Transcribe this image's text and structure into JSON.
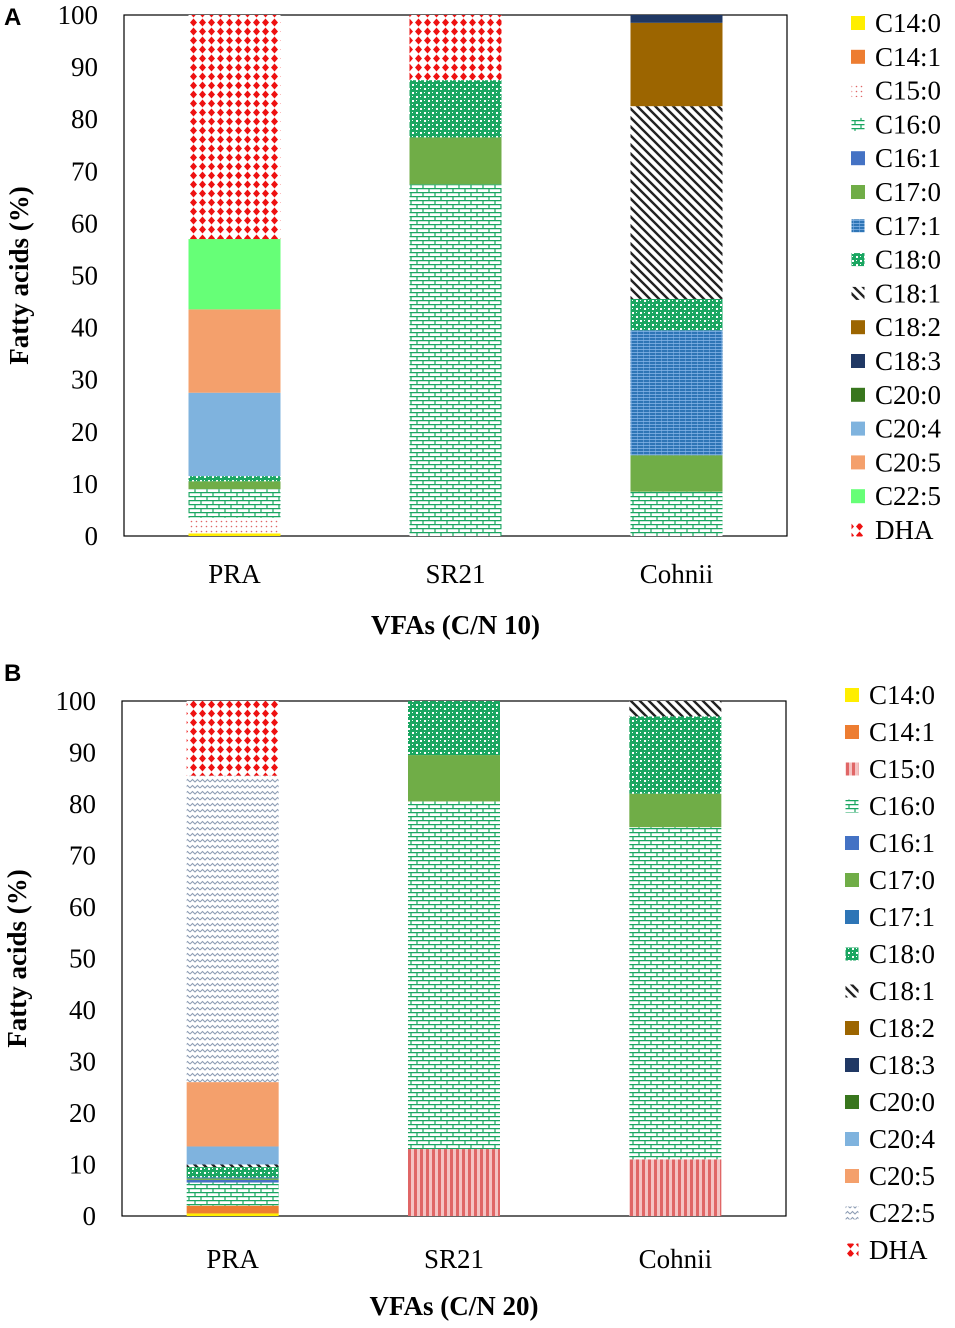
{
  "chart_data": [
    {
      "type": "bar",
      "stacked": true,
      "panel_label": "A",
      "title": "",
      "xlabel": "VFAs (C/N 10)",
      "ylabel": "Fatty acids (%)",
      "ylim": [
        0,
        100
      ],
      "yticks": [
        0,
        10,
        20,
        30,
        40,
        50,
        60,
        70,
        80,
        90,
        100
      ],
      "categories": [
        "PRA",
        "SR21",
        "Cohnii"
      ],
      "legend_position": "right",
      "series": [
        {
          "name": "C14:0",
          "color": "#ffee00",
          "pattern": "solid",
          "values": [
            0.5,
            0,
            0
          ]
        },
        {
          "name": "C14:1",
          "color": "#ed7d31",
          "pattern": "solid",
          "values": [
            0,
            0,
            0
          ]
        },
        {
          "name": "C15:0",
          "color": "#e06666",
          "pattern": "dots",
          "values": [
            3,
            0,
            0
          ]
        },
        {
          "name": "C16:0",
          "color": "#1aa661",
          "pattern": "brick",
          "values": [
            5.5,
            67.5,
            8.5
          ]
        },
        {
          "name": "C16:1",
          "color": "#4472c4",
          "pattern": "solid",
          "values": [
            0,
            0,
            0
          ]
        },
        {
          "name": "C17:0",
          "color": "#70ad47",
          "pattern": "solid",
          "values": [
            1.5,
            9,
            7
          ]
        },
        {
          "name": "C17:1",
          "color": "#2e75b6",
          "pattern": "weave",
          "values": [
            0,
            0,
            24
          ]
        },
        {
          "name": "C18:0",
          "color": "#1aa661",
          "pattern": "checker",
          "values": [
            1,
            11,
            6
          ]
        },
        {
          "name": "C18:1",
          "color": "#222222",
          "pattern": "diagonal",
          "values": [
            0,
            0,
            37
          ]
        },
        {
          "name": "C18:2",
          "color": "#9c6500",
          "pattern": "solid",
          "values": [
            0,
            0,
            16
          ]
        },
        {
          "name": "C18:3",
          "color": "#203864",
          "pattern": "solid",
          "values": [
            0,
            0,
            1.5
          ]
        },
        {
          "name": "C20:0",
          "color": "#38761d",
          "pattern": "solid",
          "values": [
            0,
            0,
            0
          ]
        },
        {
          "name": "C20:4",
          "color": "#7fb3de",
          "pattern": "solid",
          "values": [
            16,
            0,
            0
          ]
        },
        {
          "name": "C20:5",
          "color": "#f4a06c",
          "pattern": "solid",
          "values": [
            16,
            0,
            0
          ]
        },
        {
          "name": "C22:5",
          "color": "#66ff77",
          "pattern": "solid",
          "values": [
            13.5,
            0,
            0
          ]
        },
        {
          "name": "DHA",
          "color": "#ee1111",
          "pattern": "diamond",
          "values": [
            43,
            12.5,
            0
          ]
        }
      ]
    },
    {
      "type": "bar",
      "stacked": true,
      "panel_label": "B",
      "title": "",
      "xlabel": "VFAs (C/N 20)",
      "ylabel": "Fatty acids (%)",
      "ylim": [
        0,
        100
      ],
      "yticks": [
        0,
        10,
        20,
        30,
        40,
        50,
        60,
        70,
        80,
        90,
        100
      ],
      "categories": [
        "PRA",
        "SR21",
        "Cohnii"
      ],
      "legend_position": "right",
      "series": [
        {
          "name": "C14:0",
          "color": "#ffee00",
          "pattern": "solid",
          "values": [
            0.5,
            0,
            0
          ]
        },
        {
          "name": "C14:1",
          "color": "#ed7d31",
          "pattern": "solid",
          "values": [
            1.5,
            0,
            0
          ]
        },
        {
          "name": "C15:0",
          "color": "#e06666",
          "pattern": "vertical",
          "values": [
            0,
            13,
            11
          ]
        },
        {
          "name": "C16:0",
          "color": "#1aa661",
          "pattern": "brick",
          "values": [
            4.5,
            67.5,
            64.5
          ]
        },
        {
          "name": "C16:1",
          "color": "#4472c4",
          "pattern": "solid",
          "values": [
            0.5,
            0,
            0
          ]
        },
        {
          "name": "C17:0",
          "color": "#70ad47",
          "pattern": "solid",
          "values": [
            0.3,
            9,
            6.5
          ]
        },
        {
          "name": "C17:1",
          "color": "#2e75b6",
          "pattern": "solid",
          "values": [
            0.2,
            0,
            0
          ]
        },
        {
          "name": "C18:0",
          "color": "#1aa661",
          "pattern": "checker",
          "values": [
            2,
            10.5,
            15
          ]
        },
        {
          "name": "C18:1",
          "color": "#222222",
          "pattern": "diagonal",
          "values": [
            0.5,
            0,
            3
          ]
        },
        {
          "name": "C18:2",
          "color": "#9c6500",
          "pattern": "solid",
          "values": [
            0,
            0,
            0
          ]
        },
        {
          "name": "C18:3",
          "color": "#203864",
          "pattern": "solid",
          "values": [
            0,
            0,
            0
          ]
        },
        {
          "name": "C20:0",
          "color": "#38761d",
          "pattern": "solid",
          "values": [
            0,
            0,
            0
          ]
        },
        {
          "name": "C20:4",
          "color": "#7fb3de",
          "pattern": "solid",
          "values": [
            3.5,
            0,
            0
          ]
        },
        {
          "name": "C20:5",
          "color": "#f4a06c",
          "pattern": "solid",
          "values": [
            12.5,
            0,
            0
          ]
        },
        {
          "name": "C22:5",
          "color": "#8d9db4",
          "pattern": "wave",
          "values": [
            59.5,
            0,
            0
          ]
        },
        {
          "name": "DHA",
          "color": "#ee1111",
          "pattern": "diamond",
          "values": [
            14.5,
            0,
            0
          ]
        }
      ]
    }
  ]
}
